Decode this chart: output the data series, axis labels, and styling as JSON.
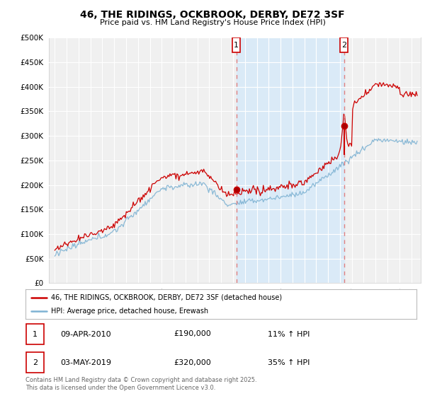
{
  "title": "46, THE RIDINGS, OCKBROOK, DERBY, DE72 3SF",
  "subtitle": "Price paid vs. HM Land Registry's House Price Index (HPI)",
  "legend_line1": "46, THE RIDINGS, OCKBROOK, DERBY, DE72 3SF (detached house)",
  "legend_line2": "HPI: Average price, detached house, Erewash",
  "annotation1_date": "09-APR-2010",
  "annotation1_price": "£190,000",
  "annotation1_hpi": "11% ↑ HPI",
  "annotation2_date": "03-MAY-2019",
  "annotation2_price": "£320,000",
  "annotation2_hpi": "35% ↑ HPI",
  "footer": "Contains HM Land Registry data © Crown copyright and database right 2025.\nThis data is licensed under the Open Government Licence v3.0.",
  "vline1_x": 2010.27,
  "vline2_x": 2019.34,
  "vline_color": "#e08080",
  "shaded_region_color": "#daeaf7",
  "red_line_color": "#cc0000",
  "blue_line_color": "#7fb3d3",
  "ylim_min": 0,
  "ylim_max": 500000,
  "yticks": [
    0,
    50000,
    100000,
    150000,
    200000,
    250000,
    300000,
    350000,
    400000,
    450000,
    500000
  ],
  "xlim_min": 1994.5,
  "xlim_max": 2025.8,
  "background_color": "#ffffff",
  "plot_bg_color": "#f0f0f0"
}
